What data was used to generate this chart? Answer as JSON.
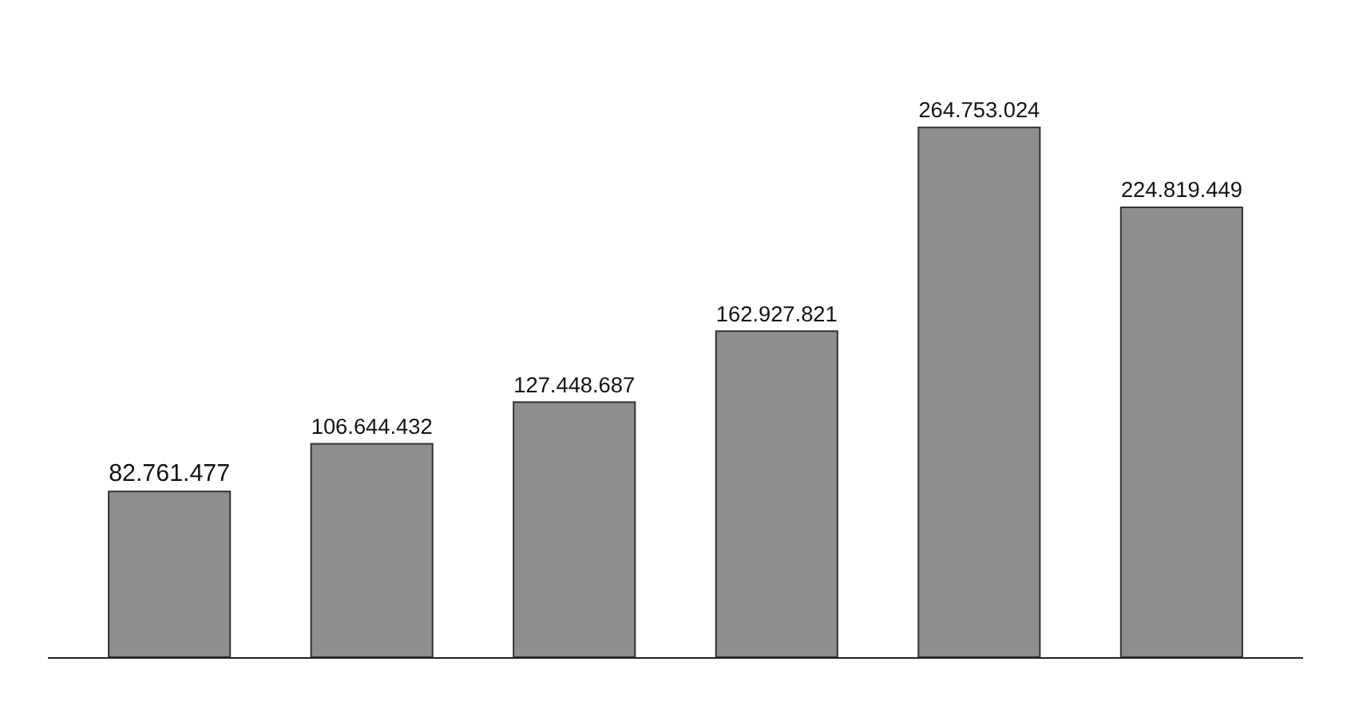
{
  "chart_data": {
    "type": "bar",
    "categories": [
      null,
      null,
      null,
      null,
      null,
      null
    ],
    "values": [
      82761477,
      106644432,
      127448687,
      162927821,
      264753024,
      224819449
    ],
    "value_labels": [
      "82.761.477",
      "106.644.432",
      "127.448.687",
      "162.927.821",
      "264.753.024",
      "224.819.449"
    ],
    "color": "#8e8e8e",
    "legend": false
  }
}
